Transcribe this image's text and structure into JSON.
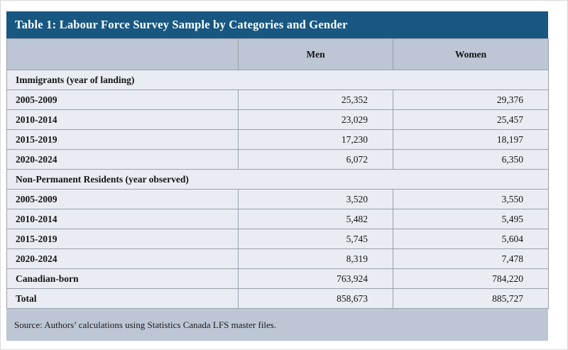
{
  "table": {
    "title": "Table 1: Labour Force Survey Sample by Categories and Gender",
    "columns": [
      "",
      "Men",
      "Women"
    ],
    "rows": [
      {
        "type": "section",
        "label": "Immigrants (year of landing)"
      },
      {
        "type": "data",
        "label": "2005-2009",
        "men": "25,352",
        "women": "29,376"
      },
      {
        "type": "data",
        "label": "2010-2014",
        "men": "23,029",
        "women": "25,457"
      },
      {
        "type": "data",
        "label": "2015-2019",
        "men": "17,230",
        "women": "18,197"
      },
      {
        "type": "data",
        "label": "2020-2024",
        "men": "6,072",
        "women": "6,350"
      },
      {
        "type": "section",
        "label": "Non-Permanent Residents (year observed)"
      },
      {
        "type": "data",
        "label": "2005-2009",
        "men": "3,520",
        "women": "3,550"
      },
      {
        "type": "data",
        "label": "2010-2014",
        "men": "5,482",
        "women": "5,495"
      },
      {
        "type": "data",
        "label": "2015-2019",
        "men": "5,745",
        "women": "5,604"
      },
      {
        "type": "data",
        "label": "2020-2024",
        "men": "8,319",
        "women": "7,478"
      },
      {
        "type": "data",
        "label": "Canadian-born",
        "men": "763,924",
        "women": "784,220"
      },
      {
        "type": "data",
        "label": "Total",
        "men": "858,673",
        "women": "885,727"
      }
    ],
    "source": "Source: Authors’ calculations using Statistics Canada LFS master files.",
    "colors": {
      "title_bg": "#175781",
      "header_bg": "#bcc6d4",
      "row_bg": "#e9ecf3",
      "border": "#9aa0aa"
    }
  }
}
